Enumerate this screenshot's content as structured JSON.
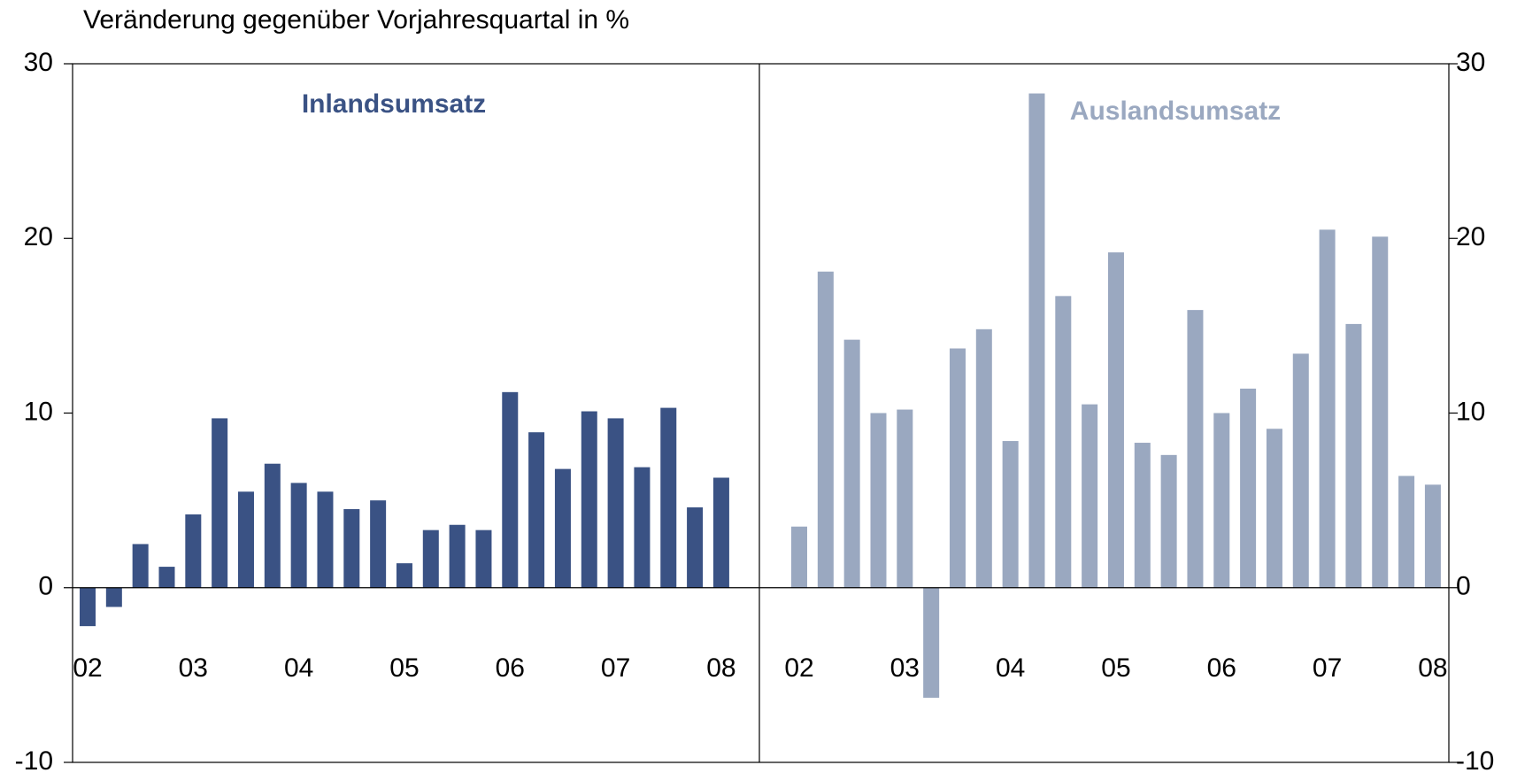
{
  "chart_data": [
    {
      "type": "bar",
      "ylabel": "Veränderung gegenüber Vorjahresquartal in %",
      "title": "Inlandsumsatz",
      "color": "#3a5284",
      "categories": [
        "02",
        null,
        null,
        null,
        "03",
        null,
        null,
        null,
        "04",
        null,
        null,
        null,
        "05",
        null,
        null,
        null,
        "06",
        null,
        null,
        null,
        "07",
        null,
        null,
        null,
        "08"
      ],
      "values": [
        -2.2,
        -1.1,
        2.5,
        1.2,
        4.2,
        9.7,
        5.5,
        7.1,
        6.0,
        5.5,
        4.5,
        5.0,
        1.4,
        3.3,
        3.6,
        3.3,
        11.2,
        8.9,
        6.8,
        10.1,
        9.7,
        6.9,
        10.3,
        4.6,
        6.3
      ],
      "ylim": [
        -10,
        30
      ],
      "yticks": [
        -10,
        0,
        10,
        20,
        30
      ]
    },
    {
      "type": "bar",
      "title": "Auslandsumsatz",
      "color": "#9aa8c0",
      "categories": [
        "02",
        null,
        null,
        null,
        "03",
        null,
        null,
        null,
        "04",
        null,
        null,
        null,
        "05",
        null,
        null,
        null,
        "06",
        null,
        null,
        null,
        "07",
        null,
        null,
        null,
        "08"
      ],
      "values": [
        3.5,
        18.1,
        14.2,
        10.0,
        10.2,
        -6.3,
        13.7,
        14.8,
        8.4,
        28.3,
        16.7,
        10.5,
        19.2,
        8.3,
        7.6,
        15.9,
        10.0,
        11.4,
        9.1,
        13.4,
        20.5,
        15.1,
        20.1,
        6.4,
        5.9
      ],
      "ylim": [
        -10,
        30
      ],
      "yticks": [
        -10,
        0,
        10,
        20,
        30
      ]
    }
  ]
}
